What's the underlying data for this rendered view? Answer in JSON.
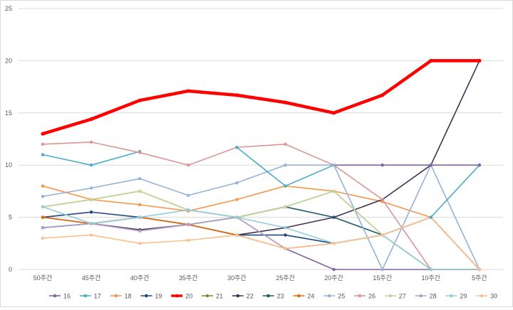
{
  "chart_data": {
    "type": "line",
    "title": "",
    "xlabel": "",
    "ylabel": "",
    "ylim": [
      0,
      25
    ],
    "yticks": [
      0,
      5,
      10,
      15,
      20,
      25
    ],
    "grid": "horizontal",
    "legend": "bottom",
    "categories": [
      "50주간",
      "45주간",
      "40주간",
      "35주간",
      "30주간",
      "25주간",
      "20주간",
      "15주간",
      "10주간",
      "5주간"
    ],
    "series": [
      {
        "name": "16",
        "color": "#8064a2",
        "values": [
          4,
          4.4,
          3.7,
          4.3,
          5,
          2,
          0,
          0,
          0,
          0
        ]
      },
      {
        "name": "17",
        "color": "#4bacc6",
        "values": [
          11,
          10,
          11.3,
          null,
          null,
          null,
          null,
          null,
          null,
          null
        ]
      },
      {
        "name": "18",
        "color": "#f79646",
        "values": [
          8,
          6.7,
          6.2,
          5.6,
          6.7,
          8,
          7.5,
          6.5,
          5,
          0
        ]
      },
      {
        "name": "19",
        "color": "#1f497d",
        "values": [
          5,
          5.5,
          5,
          4.3,
          3.3,
          3.3,
          2.5,
          3.3,
          5,
          0
        ]
      },
      {
        "name": "20",
        "color": "#ff0000",
        "values": [
          13,
          14.4,
          16.2,
          17.1,
          16.7,
          16,
          15,
          16.7,
          20,
          20
        ]
      },
      {
        "name": "21",
        "color": "#77933c",
        "values": [
          6,
          6.7,
          7.5,
          5.7,
          5,
          6,
          7.5,
          3.3,
          0,
          0
        ]
      },
      {
        "name": "22",
        "color": "#403152",
        "values": [
          4,
          4.4,
          3.8,
          4.3,
          3.3,
          4,
          5,
          6.7,
          10,
          20
        ]
      },
      {
        "name": "23",
        "color": "#215968",
        "values": [
          5,
          4.4,
          5,
          4.3,
          5,
          6,
          5,
          3.3,
          null,
          null
        ]
      },
      {
        "name": "24",
        "color": "#e46c0a",
        "values": [
          5,
          4.4,
          5,
          4.3,
          3.3,
          2,
          2.5,
          3.3,
          5,
          0
        ]
      },
      {
        "name": "25",
        "color": "#95b3d7",
        "values": [
          7,
          7.8,
          8.7,
          7.1,
          8.3,
          10,
          10,
          0,
          10,
          0
        ]
      },
      {
        "name": "26",
        "color": "#d99694",
        "values": [
          12,
          12.2,
          11.2,
          10,
          11.7,
          12,
          10,
          6.7,
          0,
          0
        ]
      },
      {
        "name": "27",
        "color": "#c3d69b",
        "values": [
          6,
          6.7,
          7.5,
          5.7,
          5,
          6,
          7.5,
          3.3,
          5,
          0
        ]
      },
      {
        "name": "28",
        "color": "#b3a2c7",
        "values": [
          4,
          4.4,
          3.7,
          4.3,
          5,
          2,
          2.5,
          3.3,
          5,
          0
        ]
      },
      {
        "name": "29",
        "color": "#92cddc",
        "values": [
          6,
          4.4,
          5,
          5.7,
          5,
          4,
          2.5,
          3.3,
          0,
          0
        ]
      },
      {
        "name": "30",
        "color": "#fac090",
        "values": [
          3,
          3.3,
          2.5,
          2.8,
          3.3,
          2,
          2.5,
          3.3,
          5,
          0
        ]
      }
    ],
    "extra_segments": [
      {
        "series_color": "#4bacc6",
        "values": [
          null,
          null,
          null,
          null,
          11.7,
          8,
          10,
          null,
          5,
          10
        ]
      },
      {
        "series_color": "#8064a2",
        "values": [
          null,
          null,
          null,
          null,
          null,
          null,
          10,
          10,
          10,
          10
        ]
      },
      {
        "series_color": "#95b3d7",
        "values": [
          null,
          null,
          null,
          null,
          null,
          null,
          10,
          null,
          null,
          null
        ]
      }
    ]
  }
}
